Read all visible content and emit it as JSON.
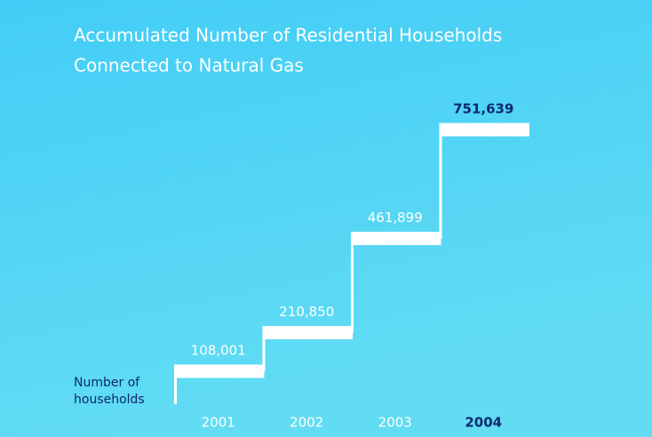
{
  "chart_data": {
    "type": "step",
    "title": [
      "Accumulated Number of Residential Households",
      "Connected to Natural Gas"
    ],
    "y_label": [
      "Number of",
      "households"
    ],
    "categories": [
      "2001",
      "2002",
      "2003",
      "2004"
    ],
    "values": [
      108001,
      210850,
      461899,
      751639
    ],
    "value_labels": [
      "108,001",
      "210,850",
      "461,899",
      "751,639"
    ],
    "color": "#ffffff",
    "highlight": 3,
    "highlight_color": "#0d2a6e"
  }
}
